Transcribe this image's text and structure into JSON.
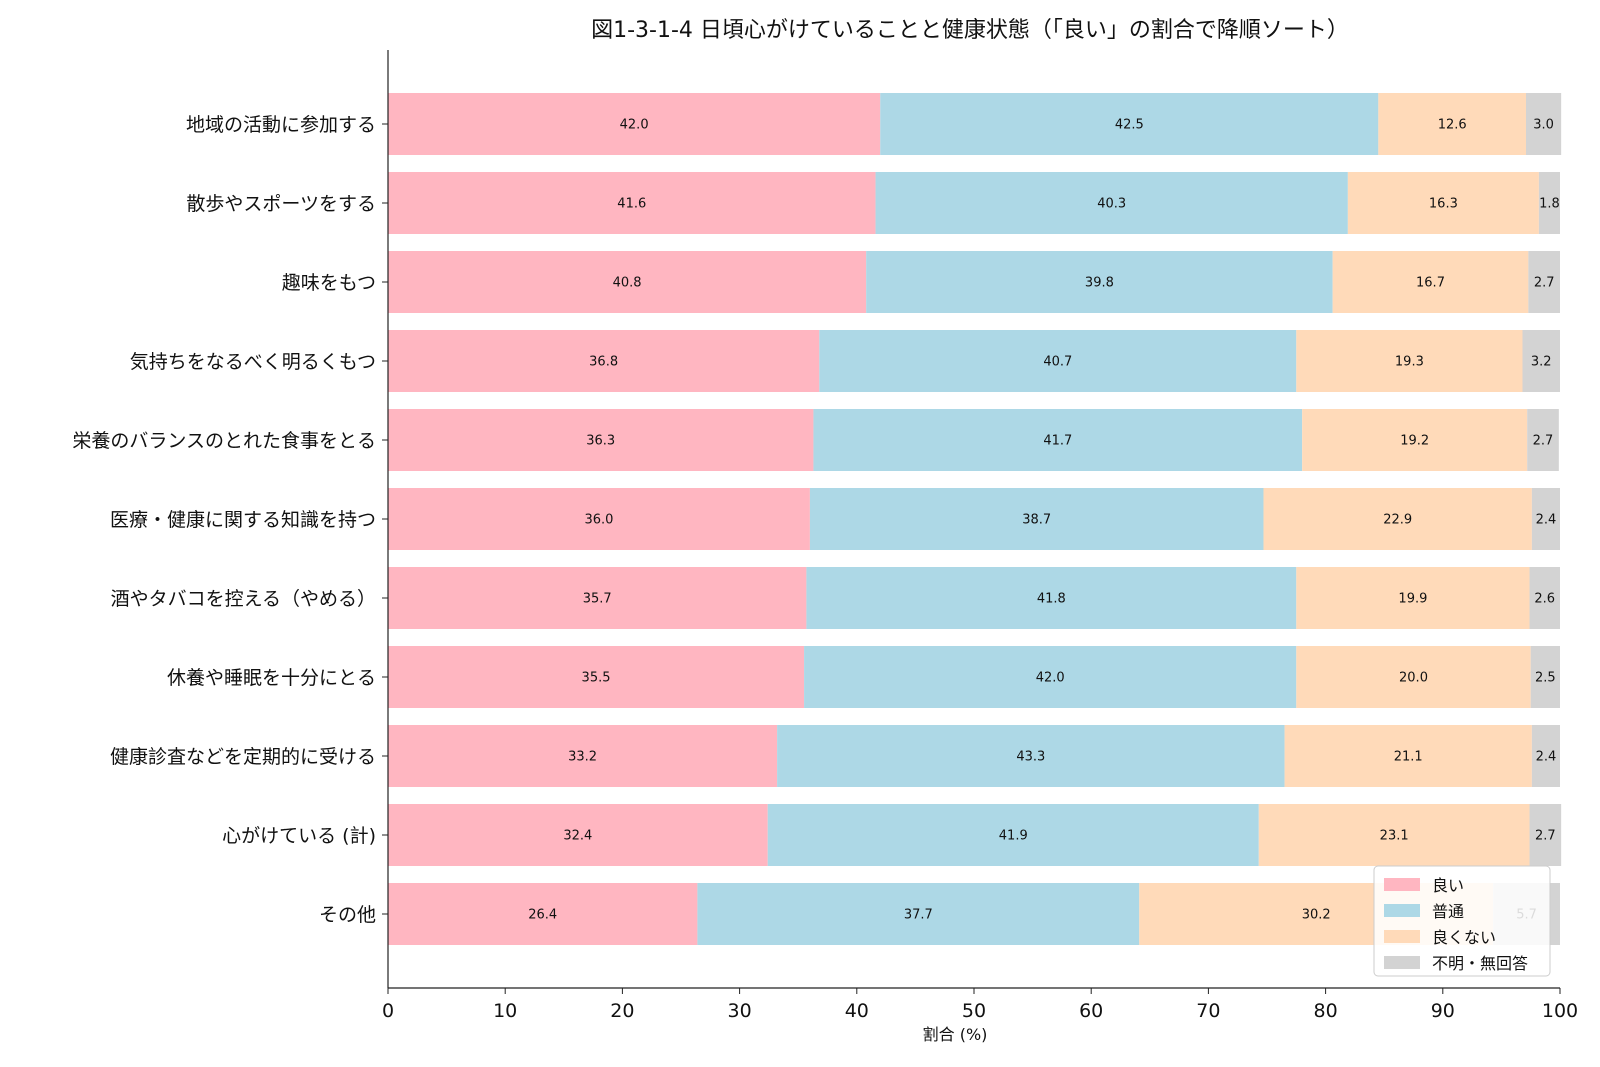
{
  "chart_data": {
    "type": "bar",
    "orientation": "horizontal",
    "stacked": true,
    "title": "図1-3-1-4 日頃心がけていることと健康状態（「良い」の割合で降順ソート）",
    "xlabel": "割合 (%)",
    "ylabel": "",
    "xlim": [
      0,
      100
    ],
    "xticks": [
      0,
      10,
      20,
      30,
      40,
      50,
      60,
      70,
      80,
      90,
      100
    ],
    "grid": false,
    "legend_position": "bottom-right",
    "categories": [
      "地域の活動に参加する",
      "散歩やスポーツをする",
      "趣味をもつ",
      "気持ちをなるべく明るくもつ",
      "栄養のバランスのとれた食事をとる",
      "医療・健康に関する知識を持つ",
      "酒やタバコを控える（やめる）",
      "休養や睡眠を十分にとる",
      "健康診査などを定期的に受ける",
      "心がけている (計)",
      "その他"
    ],
    "series": [
      {
        "name": "良い",
        "color": "#ffb6c1",
        "values": [
          42.0,
          41.6,
          40.8,
          36.8,
          36.3,
          36.0,
          35.7,
          35.5,
          33.2,
          32.4,
          26.4
        ]
      },
      {
        "name": "普通",
        "color": "#add8e6",
        "values": [
          42.5,
          40.3,
          39.8,
          40.7,
          41.7,
          38.7,
          41.8,
          42.0,
          43.3,
          41.9,
          37.7
        ]
      },
      {
        "name": "良くない",
        "color": "#ffdab9",
        "values": [
          12.6,
          16.3,
          16.7,
          19.3,
          19.2,
          22.9,
          19.9,
          20.0,
          21.1,
          23.1,
          30.2
        ]
      },
      {
        "name": "不明・無回答",
        "color": "#d3d3d3",
        "values": [
          3.0,
          1.8,
          2.7,
          3.2,
          2.7,
          2.4,
          2.6,
          2.5,
          2.4,
          2.7,
          5.7
        ]
      }
    ]
  }
}
